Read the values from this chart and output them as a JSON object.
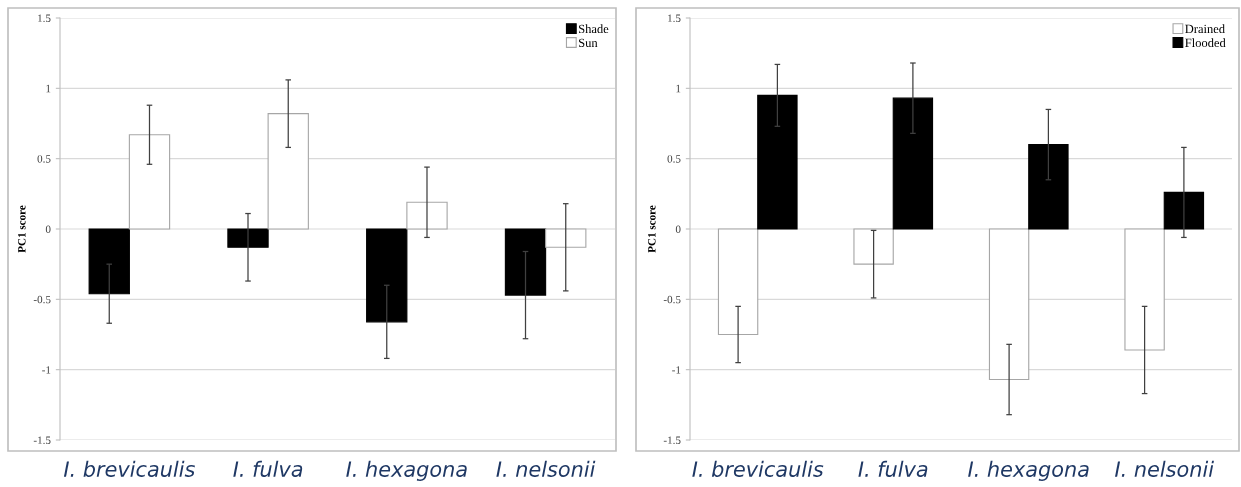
{
  "chart_data": [
    {
      "type": "bar",
      "ylabel": "PC1 score",
      "categories": [
        "I. brevicaulis",
        "I. fulva",
        "I. hexagona",
        "I. nelsonii"
      ],
      "series": [
        {
          "name": "Shade",
          "color": "#000000",
          "values": [
            -0.46,
            -0.13,
            -0.66,
            -0.47
          ],
          "errors": [
            0.21,
            0.24,
            0.26,
            0.31
          ]
        },
        {
          "name": "Sun",
          "color": "#ffffff",
          "values": [
            0.67,
            0.82,
            0.19,
            -0.13
          ],
          "errors": [
            0.21,
            0.24,
            0.25,
            0.31
          ]
        }
      ],
      "ylim": [
        -1.5,
        1.5
      ],
      "yticks": [
        -1.5,
        -1,
        -0.5,
        0,
        0.5,
        1,
        1.5
      ],
      "grid": "y",
      "legend": "top right"
    },
    {
      "type": "bar",
      "ylabel": "PC1 score",
      "categories": [
        "I. brevicaulis",
        "I. fulva",
        "I. hexagona",
        "I. nelsonii"
      ],
      "series": [
        {
          "name": "Drained",
          "color": "#ffffff",
          "values": [
            -0.75,
            -0.25,
            -1.07,
            -0.86
          ],
          "errors": [
            0.2,
            0.24,
            0.25,
            0.31
          ]
        },
        {
          "name": "Flooded",
          "color": "#000000",
          "values": [
            0.95,
            0.93,
            0.6,
            0.26
          ],
          "errors": [
            0.22,
            0.25,
            0.25,
            0.32
          ]
        }
      ],
      "ylim": [
        -1.5,
        1.5
      ],
      "yticks": [
        -1.5,
        -1,
        -0.5,
        0,
        0.5,
        1,
        1.5
      ],
      "grid": "y",
      "legend": "top right"
    }
  ]
}
